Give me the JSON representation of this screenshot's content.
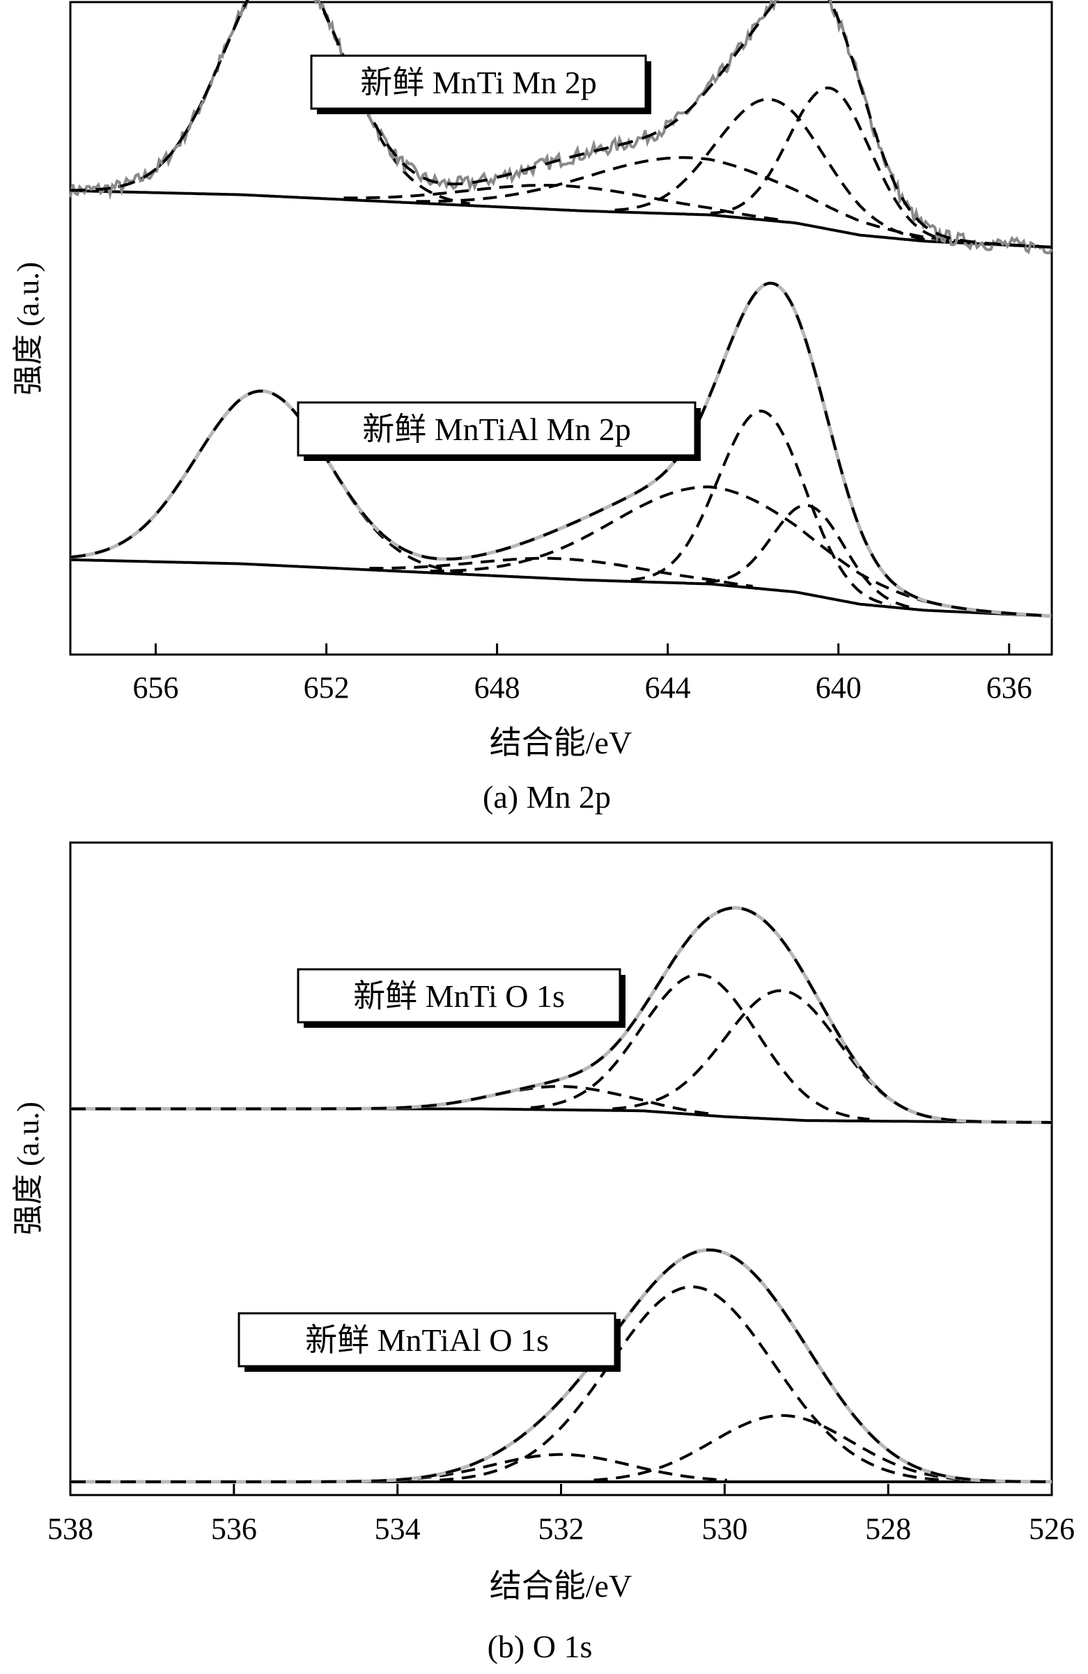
{
  "chart_data": [
    {
      "type": "line",
      "panel": "a",
      "caption": "(a) Mn 2p",
      "xlabel": "结合能/eV",
      "ylabel": "强度 (a.u.)",
      "xlim": [
        658,
        635
      ],
      "x_reversed": true,
      "xticks": [
        656,
        652,
        648,
        644,
        640,
        636
      ],
      "y_ticks_shown": false,
      "samples": [
        {
          "label": "新鲜 MnTi Mn 2p",
          "offset": 1.0,
          "background": [
            [
              658,
              0.14
            ],
            [
              654,
              0.13
            ],
            [
              650,
              0.11
            ],
            [
              646,
              0.09
            ],
            [
              643,
              0.08
            ],
            [
              641,
              0.06
            ],
            [
              639.5,
              0.03
            ],
            [
              638,
              0.015
            ],
            [
              635,
              0.0
            ]
          ],
          "components": [
            {
              "center": 653.0,
              "height": 0.58,
              "sigma": 1.4
            },
            {
              "center": 643.5,
              "height": 0.14,
              "sigma": 2.4
            },
            {
              "center": 641.6,
              "height": 0.3,
              "sigma": 1.25
            },
            {
              "center": 640.2,
              "height": 0.35,
              "sigma": 0.95
            },
            {
              "center": 646.5,
              "height": 0.06,
              "sigma": 2.2
            }
          ],
          "envelope_color": "#8a8a8a",
          "noisy": true
        },
        {
          "label": "新鲜 MnTiAl Mn 2p",
          "offset": 0.0,
          "background": [
            [
              658,
              0.14
            ],
            [
              654,
              0.13
            ],
            [
              650,
              0.11
            ],
            [
              646,
              0.09
            ],
            [
              643,
              0.08
            ],
            [
              641,
              0.06
            ],
            [
              639.5,
              0.03
            ],
            [
              638,
              0.015
            ],
            [
              635,
              0.0
            ]
          ],
          "components": [
            {
              "center": 653.5,
              "height": 0.43,
              "sigma": 1.55
            },
            {
              "center": 643.0,
              "height": 0.24,
              "sigma": 2.3
            },
            {
              "center": 641.8,
              "height": 0.44,
              "sigma": 1.0
            },
            {
              "center": 640.7,
              "height": 0.22,
              "sigma": 0.85
            },
            {
              "center": 646.5,
              "height": 0.05,
              "sigma": 2.0
            }
          ],
          "envelope_color": "#b8b8b8",
          "noisy": false
        }
      ]
    },
    {
      "type": "line",
      "panel": "b",
      "caption": "(b) O 1s",
      "xlabel": "结合能/eV",
      "ylabel": "强度 (a.u.)",
      "xlim": [
        538,
        526
      ],
      "x_reversed": true,
      "xticks": [
        538,
        536,
        534,
        532,
        530,
        528,
        526
      ],
      "y_ticks_shown": false,
      "samples": [
        {
          "label": "新鲜 MnTi O 1s",
          "offset": 1.0,
          "background": [
            [
              538,
              0.035
            ],
            [
              533,
              0.035
            ],
            [
              531,
              0.03
            ],
            [
              530,
              0.015
            ],
            [
              529,
              0.005
            ],
            [
              526,
              0.0
            ]
          ],
          "components": [
            {
              "center": 530.3,
              "height": 0.36,
              "sigma": 0.7
            },
            {
              "center": 529.3,
              "height": 0.33,
              "sigma": 0.7
            },
            {
              "center": 532.0,
              "height": 0.06,
              "sigma": 0.8
            }
          ],
          "envelope_color": "#b8b8b8",
          "noisy": false
        },
        {
          "label": "新鲜 MnTiAl O 1s",
          "offset": 0.0,
          "background": [
            [
              538,
              0.0
            ],
            [
              526,
              0.0
            ]
          ],
          "components": [
            {
              "center": 530.4,
              "height": 0.5,
              "sigma": 1.0
            },
            {
              "center": 529.3,
              "height": 0.17,
              "sigma": 0.85
            },
            {
              "center": 532.0,
              "height": 0.07,
              "sigma": 0.85
            }
          ],
          "envelope_color": "#b8b8b8",
          "noisy": false
        }
      ]
    }
  ]
}
